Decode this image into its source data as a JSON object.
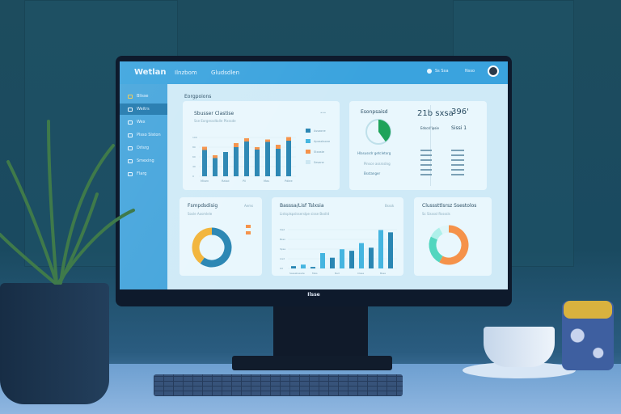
{
  "header": {
    "logo": "Wetlan",
    "nav": [
      "Ilnzbom",
      "Gludsdlen"
    ],
    "right": [
      "Ss Sxa",
      "Nsso"
    ]
  },
  "sidebar": {
    "items": [
      "Blisse",
      "Weitrs",
      "Wex",
      "Plsso Slston",
      "Drlsrg",
      "Smexing",
      "Flarg"
    ],
    "active": 1
  },
  "page_title": "Eorgpoions",
  "cards": {
    "sales": {
      "title": "Sbusser Clastise",
      "subtitle": "Sse Eorgessdtalle Plxssde",
      "menu": "•••",
      "legend": [
        "Assaone",
        "Aposstsone",
        "Stxaste",
        "Sesane"
      ],
      "xlabels": [
        "Mlsen",
        "Ralsd",
        "Pil",
        "Mas",
        "Pdlee"
      ],
      "yticks": [
        "100",
        "80",
        "60",
        "40",
        "0"
      ],
      "values": [
        65,
        45,
        60,
        72,
        86,
        66,
        85,
        68,
        88
      ],
      "tops": [
        8,
        7,
        0,
        10,
        8,
        6,
        6,
        10,
        9
      ]
    },
    "summary": {
      "title": "Esonpsaisd",
      "gauge_pct": 40,
      "items": [
        "Hlasussdr getcletorg",
        "Pinsce assrsslng",
        "Bsstanger"
      ],
      "stat1": "21b sxsa",
      "stat2": "396'",
      "stat3_label": "Edscsl'ipsie",
      "stat3": "Sissi 1"
    },
    "donut1": {
      "title": "Fsmpdsdisig",
      "subtitle": "Sosle Aosmlele",
      "menu": "Aems",
      "slices": [
        {
          "value": 40,
          "color": "#f2b43a"
        },
        {
          "value": 60,
          "color": "#2a86b3"
        }
      ]
    },
    "growth": {
      "title": "Basssa/Lisf Tslxsia",
      "subtitle": "Listsplspslsserslpe sisse Bsslld",
      "menu": "Bsssk",
      "yticks": [
        "Slsd",
        "Bsso",
        "Spse",
        "Lisd",
        "0d"
      ],
      "xlabels": [
        "Sasssbsssde",
        "Msis",
        "Nsd",
        "Clase",
        "Bssa"
      ],
      "values": [
        3,
        5,
        2,
        20,
        14,
        25,
        23,
        33,
        27,
        50,
        47
      ]
    },
    "donut2": {
      "title": "Clusssttlsrsz Ssestolos",
      "subtitle": "Sc Sissssl Rssssls",
      "menu": "Bss",
      "slices": [
        {
          "value": 58,
          "color": "#f5924a"
        },
        {
          "value": 24,
          "color": "#52d6bf"
        },
        {
          "value": 10,
          "color": "#aef0ea"
        },
        {
          "value": 8,
          "color": "#dff6f9"
        }
      ]
    }
  },
  "monitor_brand": "Ilsse",
  "colors": {
    "header": "#3aa3de",
    "bar": "#2a86b3",
    "bar_top": "#f5924a",
    "green": "#1fa35a"
  }
}
